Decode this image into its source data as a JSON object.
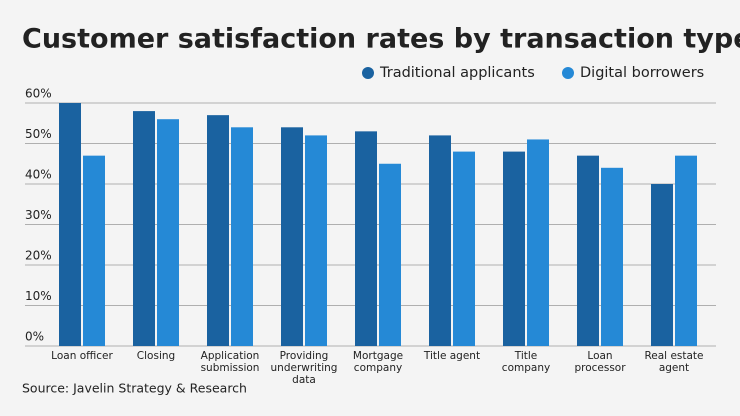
{
  "chart_data": {
    "type": "bar",
    "title": "Customer satisfaction rates by transaction type",
    "source": "Source: Javelin Strategy & Research",
    "categories": [
      "Loan officer",
      "Closing",
      "Application\nsubmission",
      "Providing\nunderwriting\ndata",
      "Mortgage\ncompany",
      "Title agent",
      "Title\ncompany",
      "Loan\nprocessor",
      "Real estate\nagent"
    ],
    "series": [
      {
        "name": "Traditional applicants",
        "color": "#1a62a0",
        "values": [
          60,
          58,
          57,
          54,
          53,
          52,
          48,
          47,
          40
        ]
      },
      {
        "name": "Digital borrowers",
        "color": "#2589d6",
        "values": [
          47,
          56,
          54,
          52,
          45,
          48,
          51,
          44,
          47
        ]
      }
    ],
    "ylim": [
      0,
      60
    ],
    "yticks": [
      {
        "value": 0,
        "label": "0%"
      },
      {
        "value": 10,
        "label": "10%"
      },
      {
        "value": 20,
        "label": "20%"
      },
      {
        "value": 30,
        "label": "30%"
      },
      {
        "value": 40,
        "label": "40%"
      },
      {
        "value": 50,
        "label": "50%"
      },
      {
        "value": 60,
        "label": "60%"
      }
    ],
    "grid": true
  }
}
